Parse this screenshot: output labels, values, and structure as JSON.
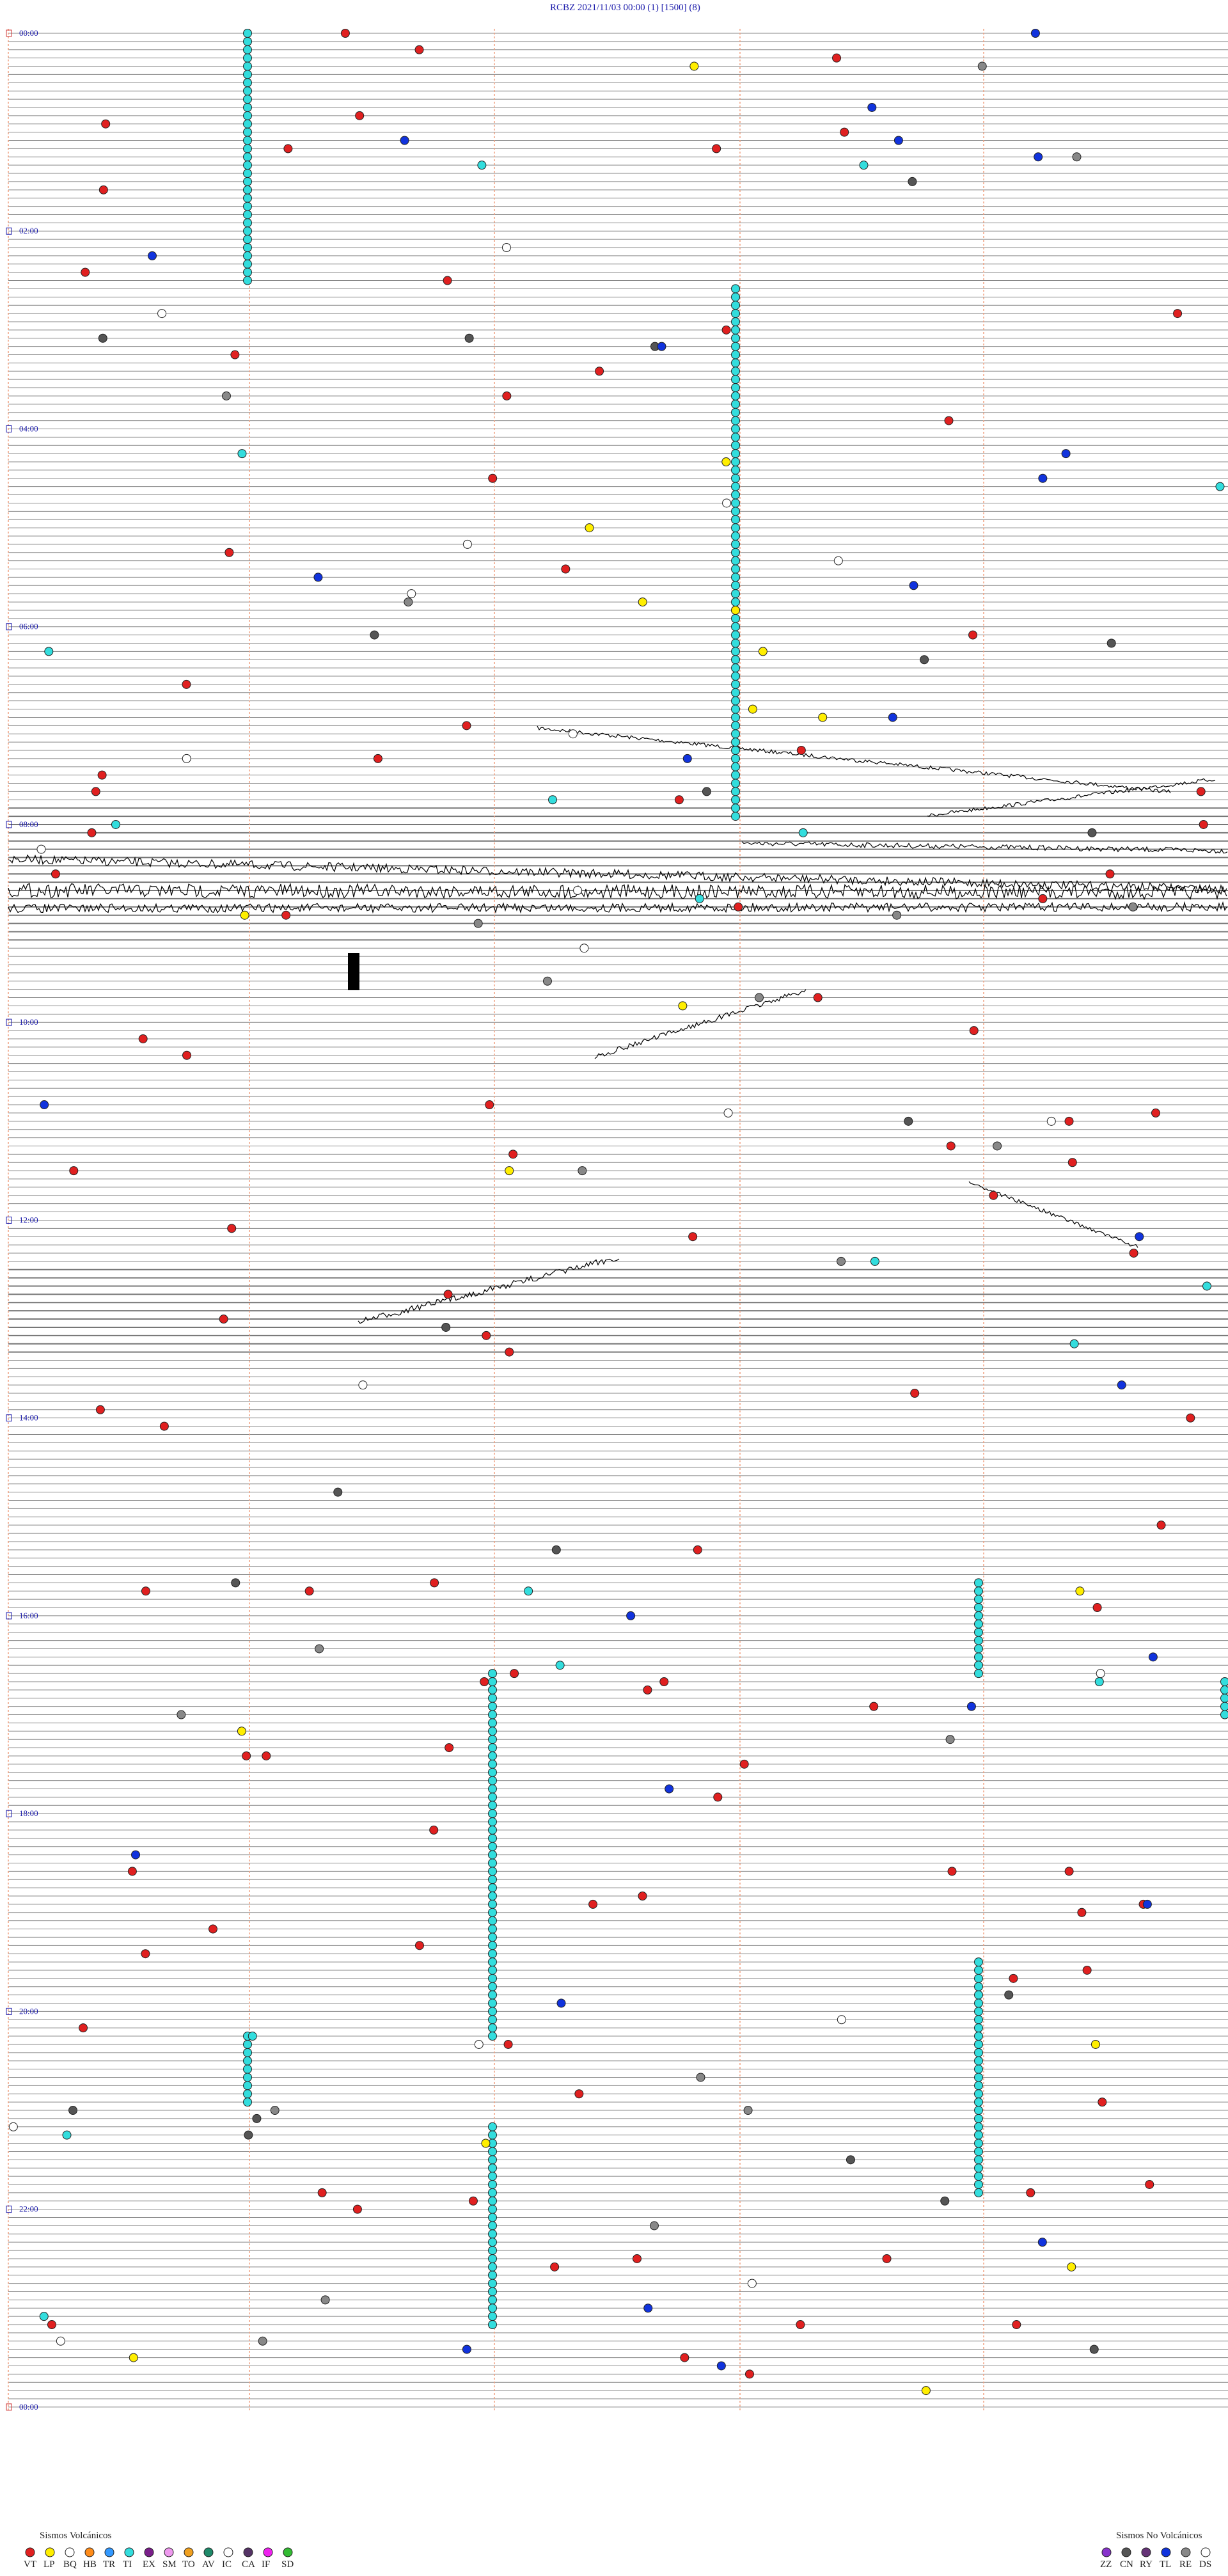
{
  "header": {
    "title": "RCBZ    2021/11/03 00:00     (1)    [1500]  (8)"
  },
  "time_labels": [
    "00:00",
    "02:00",
    "04:00",
    "06:00",
    "08:00",
    "10:00",
    "12:00",
    "14:00",
    "16:00",
    "18:00",
    "20:00",
    "22:00",
    "00:00"
  ],
  "legend_volcanic": {
    "title": "Sismos Volcánicos",
    "items": [
      {
        "code": "VT",
        "color": "#e02020"
      },
      {
        "code": "LP",
        "color": "#ffee00"
      },
      {
        "code": "BQ",
        "color": "#ffffff"
      },
      {
        "code": "HB",
        "color": "#ff8c1a"
      },
      {
        "code": "TR",
        "color": "#3399ff"
      },
      {
        "code": "TI",
        "color": "#33dddd"
      },
      {
        "code": "EX",
        "color": "#7a1f8a"
      },
      {
        "code": "SM",
        "color": "#ee99ee"
      },
      {
        "code": "TO",
        "color": "#f0a020"
      },
      {
        "code": "AV",
        "color": "#1f8a6a"
      },
      {
        "code": "IC",
        "color": "#ffffff"
      },
      {
        "code": "CA",
        "color": "#553366"
      },
      {
        "code": "IF",
        "color": "#ee22ee"
      },
      {
        "code": "SD",
        "color": "#33bb33"
      }
    ]
  },
  "legend_non_volcanic": {
    "title": "Sismos No Volcánicos",
    "items": [
      {
        "code": "ZZ",
        "color": "#8833cc"
      },
      {
        "code": "CN",
        "color": "#555555"
      },
      {
        "code": "RY",
        "color": "#663377"
      },
      {
        "code": "TL",
        "color": "#1133dd"
      },
      {
        "code": "RE",
        "color": "#888888"
      },
      {
        "code": "DS",
        "color": "#ffffff"
      }
    ]
  }
}
